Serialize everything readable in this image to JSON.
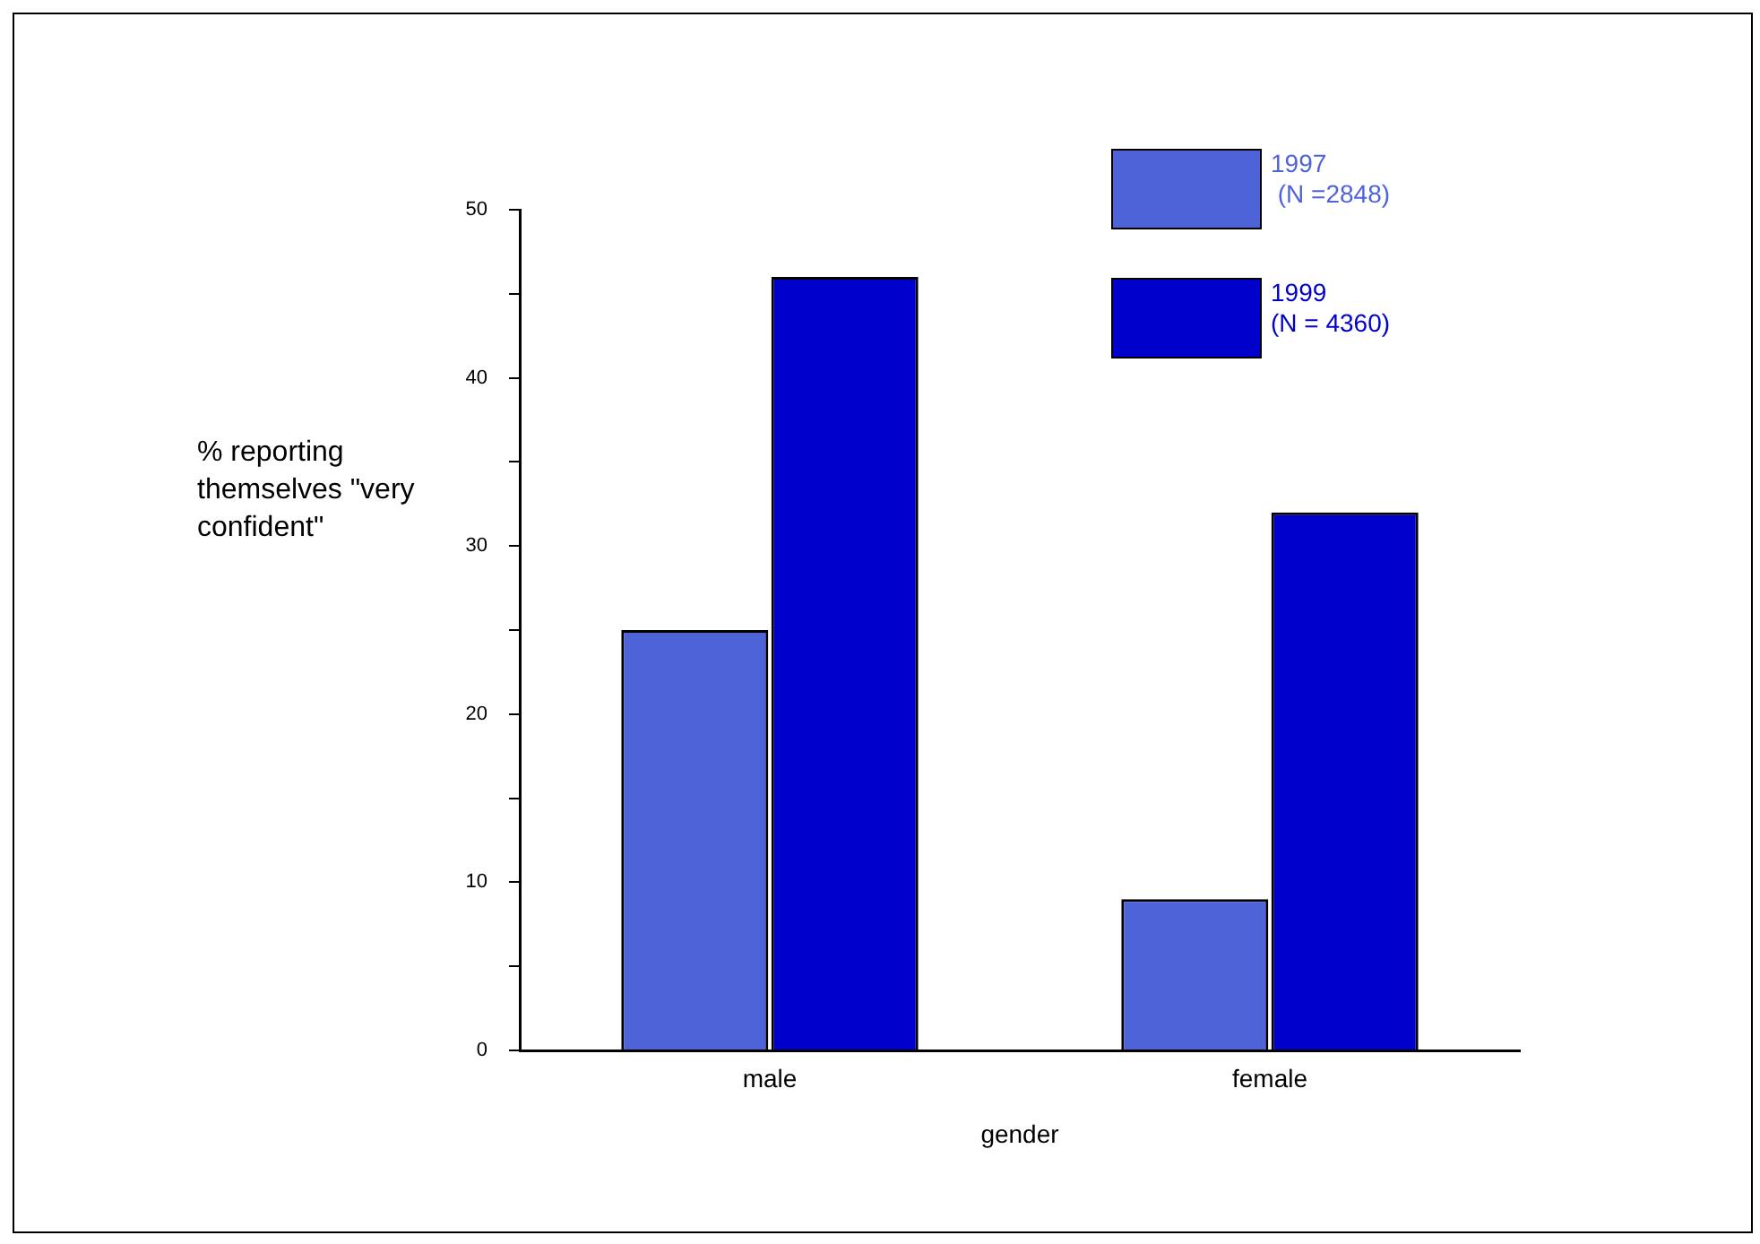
{
  "chart_data": {
    "type": "bar",
    "categories": [
      "male",
      "female"
    ],
    "series": [
      {
        "name": "1997\n (N =2848)",
        "color": "#4f63d8",
        "values": [
          25,
          9
        ]
      },
      {
        "name": "1999\n(N = 4360)",
        "color": "#0000cc",
        "values": [
          46,
          32
        ]
      }
    ],
    "xlabel": "gender",
    "ylabel": "% reporting themselves \"very confident\"",
    "ylim": [
      0,
      50
    ],
    "yticks": [
      0,
      {
        "value": 5,
        "label": null
      },
      10,
      {
        "value": 15,
        "label": null
      },
      20,
      {
        "value": 25,
        "label": null
      },
      30,
      {
        "value": 35,
        "label": null
      },
      40,
      {
        "value": 45,
        "label": null
      },
      50
    ],
    "grid": false,
    "legend": "top right"
  }
}
